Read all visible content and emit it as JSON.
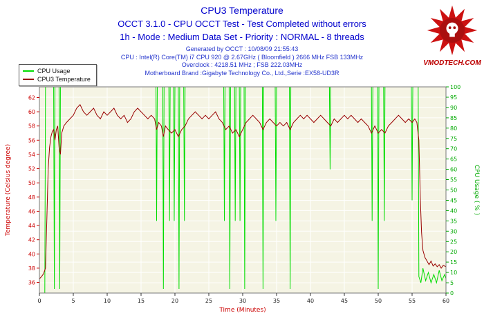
{
  "header": {
    "title": "CPU3 Temperature",
    "subtitle1": "OCCT 3.1.0 - CPU OCCT Test - Test Completed without errors",
    "subtitle2": "1h - Mode : Medium Data Set - Priority : NORMAL - 8 threads",
    "info1": "Generated by OCCT : 10/08/09 21:55:43",
    "info2": "CPU : Intel(R) Core(TM) i7 CPU 920 @ 2.67GHz ( Bloomfield ) 2666 MHz FSB 133MHz",
    "info3": "Overclock : 4218.51 MHz ; FSB 222.03MHz",
    "info4": "Motherboard Brand :Gigabyte Technology Co., Ltd.,Serie :EX58-UD3R"
  },
  "logo": {
    "text": "VMODTECH.COM",
    "color": "#bb0000"
  },
  "colors": {
    "title_blue": "#0000cd",
    "plot_bg": "#f5f4e4",
    "grid": "#ffffff",
    "temp_red": "#990000",
    "usage_green": "#00dd00",
    "axis_red": "#cc0000",
    "axis_green": "#00aa00"
  },
  "chart_data": {
    "type": "line",
    "title": "CPU3 Temperature",
    "xlabel": "Time (Minutes)",
    "xlim": [
      0,
      60
    ],
    "x_ticks": [
      0,
      5,
      10,
      15,
      20,
      25,
      30,
      35,
      40,
      45,
      50,
      55,
      60
    ],
    "grid": true,
    "legend_position": "top-left",
    "axes": {
      "left": {
        "label": "Temperature (Celsius degree)",
        "color": "#cc0000",
        "range": [
          34.5,
          63.5
        ],
        "ticks": [
          36,
          38,
          40,
          42,
          44,
          46,
          48,
          50,
          52,
          54,
          56,
          58,
          60,
          62
        ]
      },
      "right": {
        "label": "CPU Usage ( % )",
        "color": "#00aa00",
        "range": [
          0,
          100
        ],
        "ticks": [
          0,
          5,
          10,
          15,
          20,
          25,
          30,
          35,
          40,
          45,
          50,
          55,
          60,
          65,
          70,
          75,
          80,
          85,
          90,
          95,
          100
        ]
      }
    },
    "series": [
      {
        "name": "CPU Usage",
        "axis": "right",
        "color": "#00dd00",
        "points": [
          [
            0,
            0
          ],
          [
            0.8,
            0
          ],
          [
            0.9,
            100
          ],
          [
            2.1,
            100
          ],
          [
            2.2,
            2
          ],
          [
            2.3,
            100
          ],
          [
            2.9,
            100
          ],
          [
            3,
            2
          ],
          [
            3.1,
            100
          ],
          [
            17.2,
            100
          ],
          [
            17.3,
            35
          ],
          [
            17.4,
            100
          ],
          [
            18.2,
            100
          ],
          [
            18.3,
            2
          ],
          [
            18.4,
            100
          ],
          [
            19.1,
            100
          ],
          [
            19.2,
            35
          ],
          [
            19.3,
            100
          ],
          [
            19.8,
            100
          ],
          [
            19.9,
            35
          ],
          [
            20,
            100
          ],
          [
            20.5,
            100
          ],
          [
            20.6,
            2
          ],
          [
            20.7,
            100
          ],
          [
            21.3,
            100
          ],
          [
            21.4,
            35
          ],
          [
            21.5,
            100
          ],
          [
            27.2,
            100
          ],
          [
            27.3,
            35
          ],
          [
            27.4,
            100
          ],
          [
            28,
            100
          ],
          [
            28.1,
            2
          ],
          [
            28.2,
            100
          ],
          [
            28.8,
            100
          ],
          [
            28.9,
            35
          ],
          [
            29,
            100
          ],
          [
            29.5,
            100
          ],
          [
            29.6,
            35
          ],
          [
            29.7,
            100
          ],
          [
            30.2,
            100
          ],
          [
            30.3,
            2
          ],
          [
            30.4,
            100
          ],
          [
            32.9,
            100
          ],
          [
            33,
            2
          ],
          [
            33.1,
            100
          ],
          [
            34.8,
            100
          ],
          [
            34.9,
            35
          ],
          [
            35,
            100
          ],
          [
            36.9,
            100
          ],
          [
            37,
            2
          ],
          [
            37.1,
            100
          ],
          [
            42.8,
            100
          ],
          [
            42.9,
            60
          ],
          [
            43,
            100
          ],
          [
            49,
            100
          ],
          [
            49.1,
            35
          ],
          [
            49.2,
            100
          ],
          [
            49.9,
            100
          ],
          [
            50,
            2
          ],
          [
            50.1,
            100
          ],
          [
            50.8,
            100
          ],
          [
            50.9,
            35
          ],
          [
            51,
            100
          ],
          [
            54.9,
            100
          ],
          [
            55,
            45
          ],
          [
            55.1,
            100
          ],
          [
            55.9,
            100
          ],
          [
            56,
            8
          ],
          [
            56.3,
            5
          ],
          [
            56.6,
            12
          ],
          [
            57,
            6
          ],
          [
            57.4,
            10
          ],
          [
            57.8,
            5
          ],
          [
            58.2,
            9
          ],
          [
            58.6,
            5
          ],
          [
            59,
            11
          ],
          [
            59.4,
            6
          ],
          [
            59.8,
            9
          ],
          [
            60,
            7
          ]
        ]
      },
      {
        "name": "CPU3 Temperature",
        "axis": "left",
        "color": "#990000",
        "points": [
          [
            0,
            36.5
          ],
          [
            0.3,
            36.8
          ],
          [
            0.6,
            37.2
          ],
          [
            0.9,
            38
          ],
          [
            1.1,
            45
          ],
          [
            1.3,
            52
          ],
          [
            1.5,
            55
          ],
          [
            1.7,
            56.5
          ],
          [
            1.9,
            57.2
          ],
          [
            2.1,
            57.5
          ],
          [
            2.3,
            56
          ],
          [
            2.5,
            57.5
          ],
          [
            2.7,
            58
          ],
          [
            2.9,
            55
          ],
          [
            3.1,
            54
          ],
          [
            3.3,
            57
          ],
          [
            3.6,
            58
          ],
          [
            4,
            58.5
          ],
          [
            4.5,
            59
          ],
          [
            5,
            59.5
          ],
          [
            5.5,
            60.5
          ],
          [
            6,
            61
          ],
          [
            6.5,
            60
          ],
          [
            7,
            59.5
          ],
          [
            7.5,
            60
          ],
          [
            8,
            60.5
          ],
          [
            8.5,
            59.5
          ],
          [
            9,
            59
          ],
          [
            9.5,
            60
          ],
          [
            10,
            59.5
          ],
          [
            10.5,
            60
          ],
          [
            11,
            60.5
          ],
          [
            11.5,
            59.5
          ],
          [
            12,
            59
          ],
          [
            12.5,
            59.5
          ],
          [
            13,
            58.5
          ],
          [
            13.5,
            59
          ],
          [
            14,
            60
          ],
          [
            14.5,
            60.5
          ],
          [
            15,
            60
          ],
          [
            15.5,
            59.5
          ],
          [
            16,
            59
          ],
          [
            16.5,
            59.5
          ],
          [
            17,
            59
          ],
          [
            17.3,
            57.5
          ],
          [
            17.6,
            58.5
          ],
          [
            18,
            58
          ],
          [
            18.3,
            56.5
          ],
          [
            18.6,
            58
          ],
          [
            19,
            57.5
          ],
          [
            19.5,
            57
          ],
          [
            20,
            57.5
          ],
          [
            20.5,
            56.5
          ],
          [
            21,
            57.5
          ],
          [
            21.5,
            58
          ],
          [
            22,
            59
          ],
          [
            22.5,
            59.5
          ],
          [
            23,
            60
          ],
          [
            23.5,
            59.5
          ],
          [
            24,
            59
          ],
          [
            24.5,
            59.5
          ],
          [
            25,
            59
          ],
          [
            25.5,
            59.5
          ],
          [
            26,
            60
          ],
          [
            26.5,
            59
          ],
          [
            27,
            58.5
          ],
          [
            27.5,
            57.5
          ],
          [
            28,
            58
          ],
          [
            28.5,
            57
          ],
          [
            29,
            57.5
          ],
          [
            29.5,
            56.5
          ],
          [
            30,
            57.5
          ],
          [
            30.5,
            58.5
          ],
          [
            31,
            59
          ],
          [
            31.5,
            59.5
          ],
          [
            32,
            59
          ],
          [
            32.5,
            58.5
          ],
          [
            33,
            57.5
          ],
          [
            33.5,
            58.5
          ],
          [
            34,
            59
          ],
          [
            34.5,
            58.5
          ],
          [
            35,
            58
          ],
          [
            35.5,
            58.5
          ],
          [
            36,
            58
          ],
          [
            36.5,
            58.5
          ],
          [
            37,
            57.5
          ],
          [
            37.5,
            58.5
          ],
          [
            38,
            59
          ],
          [
            38.5,
            59.5
          ],
          [
            39,
            59
          ],
          [
            39.5,
            59.5
          ],
          [
            40,
            59
          ],
          [
            40.5,
            58.5
          ],
          [
            41,
            59
          ],
          [
            41.5,
            59.5
          ],
          [
            42,
            59
          ],
          [
            42.5,
            58.5
          ],
          [
            43,
            58
          ],
          [
            43.5,
            59
          ],
          [
            44,
            58.5
          ],
          [
            44.5,
            59
          ],
          [
            45,
            59.5
          ],
          [
            45.5,
            59
          ],
          [
            46,
            59.5
          ],
          [
            46.5,
            59
          ],
          [
            47,
            58.5
          ],
          [
            47.5,
            59
          ],
          [
            48,
            58.5
          ],
          [
            48.5,
            58
          ],
          [
            49,
            57
          ],
          [
            49.5,
            58
          ],
          [
            50,
            57
          ],
          [
            50.5,
            57.5
          ],
          [
            51,
            57
          ],
          [
            51.5,
            58
          ],
          [
            52,
            58.5
          ],
          [
            52.5,
            59
          ],
          [
            53,
            59.5
          ],
          [
            53.5,
            59
          ],
          [
            54,
            58.5
          ],
          [
            54.5,
            59
          ],
          [
            55,
            58.5
          ],
          [
            55.4,
            59
          ],
          [
            55.7,
            58.5
          ],
          [
            56,
            56
          ],
          [
            56.2,
            48
          ],
          [
            56.4,
            43
          ],
          [
            56.6,
            40.5
          ],
          [
            56.9,
            39.5
          ],
          [
            57.2,
            39
          ],
          [
            57.5,
            38.5
          ],
          [
            57.8,
            39
          ],
          [
            58.1,
            38.3
          ],
          [
            58.4,
            38.6
          ],
          [
            58.7,
            38.2
          ],
          [
            59,
            38.5
          ],
          [
            59.3,
            38
          ],
          [
            59.6,
            38.4
          ],
          [
            60,
            38.2
          ]
        ]
      }
    ]
  }
}
